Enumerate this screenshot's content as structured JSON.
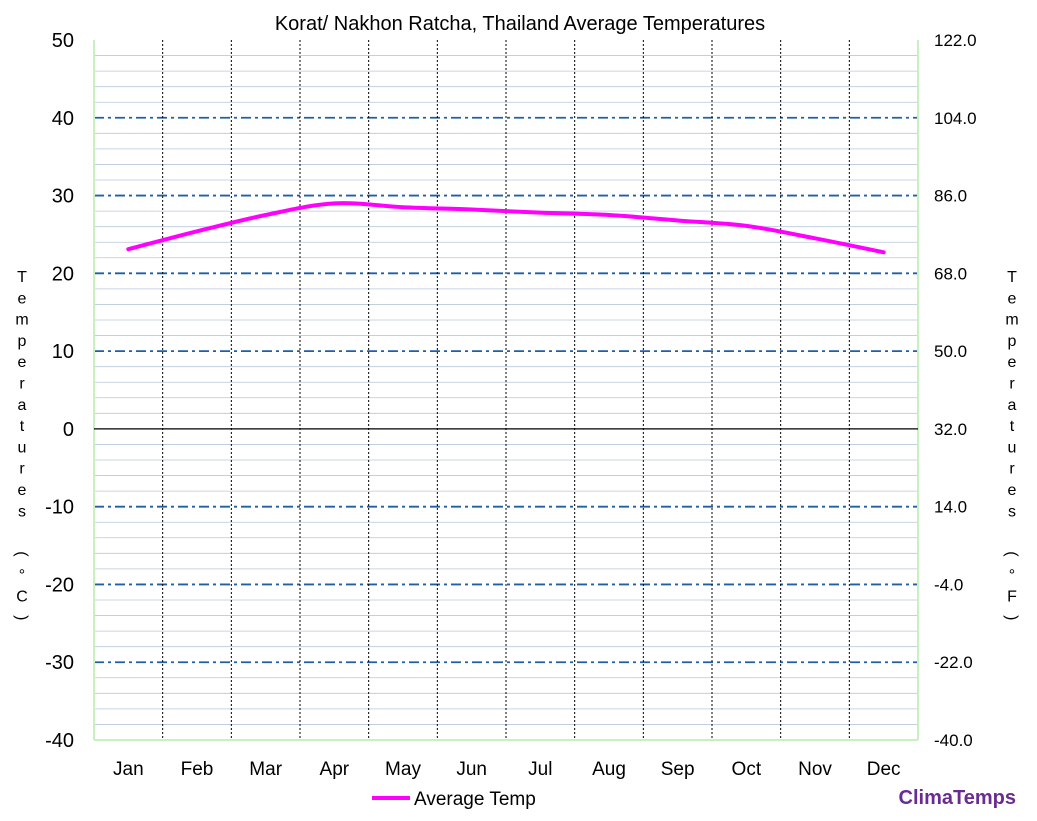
{
  "chart_data": {
    "type": "line",
    "title": "Korat/ Nakhon Ratcha, Thailand Average Temperatures",
    "categories": [
      "Jan",
      "Feb",
      "Mar",
      "Apr",
      "May",
      "Jun",
      "Jul",
      "Aug",
      "Sep",
      "Oct",
      "Nov",
      "Dec"
    ],
    "series": [
      {
        "name": "Average Temp",
        "color": "#ff00ff",
        "values": [
          23.1,
          25.4,
          27.5,
          29.0,
          28.5,
          28.2,
          27.8,
          27.5,
          26.8,
          26.1,
          24.5,
          22.7
        ]
      }
    ],
    "ylim": [
      -40,
      50
    ],
    "yticks": [
      "50",
      "40",
      "30",
      "20",
      "10",
      "0",
      "-10",
      "-20",
      "-30",
      "-40"
    ],
    "y2ticks": [
      "122.0",
      "104.0",
      "86.0",
      "68.0",
      "50.0",
      "32.0",
      "14.0",
      "-4.0",
      "-22.0",
      "-40.0"
    ],
    "ylabel": "Temperatures (°C)",
    "y2label": "Temperatures (°F)",
    "grid": true,
    "legend_position": "bottom-center"
  },
  "brand": "ClimaTemps",
  "colors": {
    "major_grid": "#1f5fa8",
    "minor_grid": "#b8c8dc",
    "month_divider": "#000000",
    "axis_frame": "#c8f0c0",
    "brand": "#6a2c91"
  }
}
